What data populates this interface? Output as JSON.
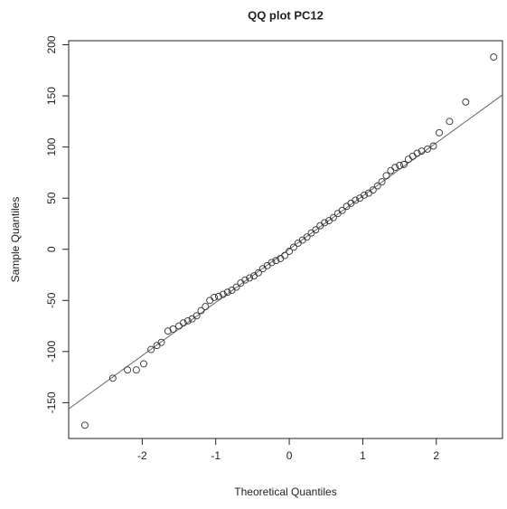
{
  "chart_data": {
    "type": "scatter",
    "title": "QQ plot PC12",
    "x_label": "Theoretical Quantiles",
    "y_label": "Sample Quantiles",
    "x": [
      -2.78,
      -2.4,
      -2.2,
      -2.08,
      -1.98,
      -1.88,
      -1.8,
      -1.74,
      -1.65,
      -1.58,
      -1.5,
      -1.44,
      -1.38,
      -1.32,
      -1.26,
      -1.2,
      -1.14,
      -1.08,
      -1.02,
      -0.96,
      -0.9,
      -0.84,
      -0.78,
      -0.72,
      -0.66,
      -0.6,
      -0.54,
      -0.48,
      -0.42,
      -0.36,
      -0.3,
      -0.24,
      -0.18,
      -0.12,
      -0.06,
      0,
      0.06,
      0.12,
      0.18,
      0.24,
      0.3,
      0.36,
      0.42,
      0.48,
      0.54,
      0.6,
      0.66,
      0.72,
      0.78,
      0.84,
      0.9,
      0.96,
      1.02,
      1.08,
      1.14,
      1.2,
      1.26,
      1.32,
      1.38,
      1.44,
      1.5,
      1.56,
      1.62,
      1.68,
      1.74,
      1.8,
      1.88,
      1.96,
      2.04,
      2.18,
      2.4,
      2.78
    ],
    "values": [
      -172,
      -126,
      -118,
      -118,
      -112,
      -98,
      -94,
      -91,
      -80,
      -78,
      -75,
      -72,
      -70,
      -68,
      -65,
      -60,
      -56,
      -50,
      -47,
      -46,
      -44,
      -42,
      -40,
      -37,
      -33,
      -30,
      -28,
      -26,
      -23,
      -19,
      -16,
      -13,
      -11,
      -9,
      -6,
      -2,
      2,
      6,
      9,
      12,
      16,
      19,
      23,
      26,
      28,
      31,
      35,
      38,
      42,
      45,
      48,
      50,
      53,
      55,
      58,
      62,
      66,
      72,
      77,
      80,
      82,
      83,
      88,
      91,
      94,
      96,
      98,
      101,
      114,
      125,
      144,
      188
    ],
    "color": "#333333",
    "reference_line": {
      "x": [
        -3.0,
        2.9
      ],
      "y": [
        -156,
        151
      ],
      "color": "#666666"
    },
    "xlim": [
      -3.0,
      2.9
    ],
    "ylim": [
      -185,
      204
    ],
    "xticks": [
      -2,
      -1,
      0,
      1,
      2
    ],
    "yticks": [
      -150,
      -100,
      -50,
      0,
      50,
      100,
      150,
      200
    ]
  }
}
